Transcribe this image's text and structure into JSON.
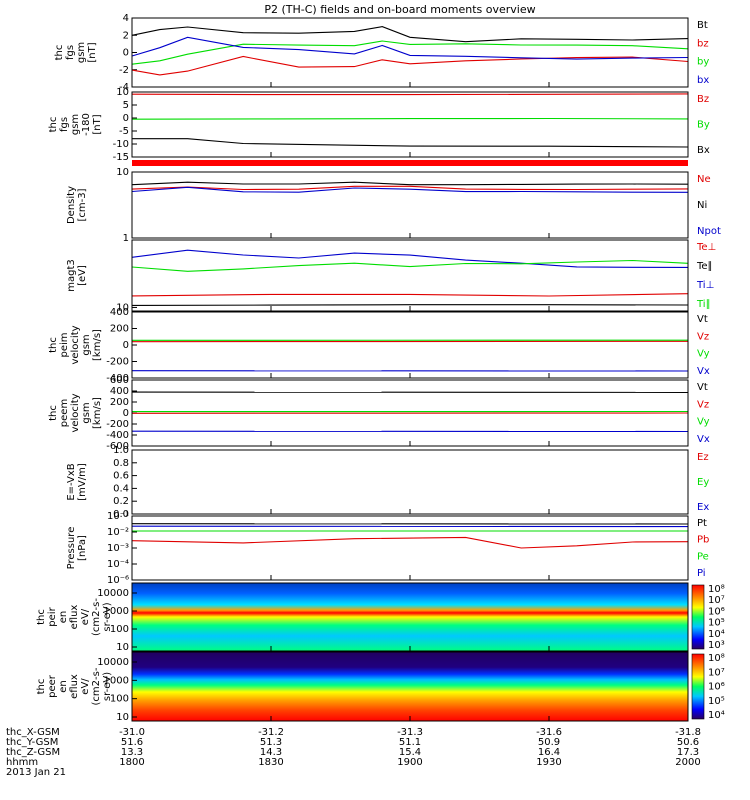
{
  "title": "P2 (TH-C) fields and on-board moments overview",
  "date": "2013 Jan 21",
  "footer": {
    "rows": [
      {
        "label": "thc_X-GSM",
        "values": [
          "-31.0",
          "-31.2",
          "-31.3",
          "-31.6",
          "-31.8"
        ]
      },
      {
        "label": "thc_Y-GSM",
        "values": [
          "51.6",
          "51.3",
          "51.1",
          "50.9",
          "50.6"
        ]
      },
      {
        "label": "thc_Z-GSM",
        "values": [
          "13.3",
          "14.3",
          "15.4",
          "16.4",
          "17.3"
        ]
      },
      {
        "label": "hhmm",
        "values": [
          "1800",
          "1830",
          "1900",
          "1930",
          "2000"
        ]
      }
    ]
  },
  "colors": {
    "black": "#000000",
    "red": "#e00000",
    "green": "#00dd00",
    "blue": "#0000cc"
  },
  "chart_data": [
    {
      "type": "line",
      "ylabel": [
        "thc",
        "fgs",
        "gsm",
        "[nT]"
      ],
      "ylim": [
        -4,
        4
      ],
      "yticks": [
        "-4",
        "-2",
        "0",
        "2",
        "4"
      ],
      "series": [
        {
          "name": "Bt",
          "color": "black",
          "x": [
            0,
            5,
            10,
            20,
            30,
            40,
            45,
            50,
            60,
            70,
            80,
            90,
            100
          ],
          "y": [
            2.0,
            2.7,
            3.0,
            2.3,
            2.2,
            2.4,
            3.0,
            1.8,
            1.3,
            1.6,
            1.5,
            1.4,
            1.6
          ]
        },
        {
          "name": "bz",
          "color": "red",
          "x": [
            0,
            5,
            10,
            20,
            30,
            40,
            45,
            50,
            60,
            70,
            80,
            90,
            100
          ],
          "y": [
            -2.0,
            -2.6,
            -2.2,
            -0.5,
            -1.7,
            -1.6,
            -0.8,
            -1.3,
            -1.0,
            -0.8,
            -0.6,
            -0.5,
            -1.0
          ]
        },
        {
          "name": "by",
          "color": "green",
          "x": [
            0,
            5,
            10,
            20,
            30,
            40,
            45,
            50,
            60,
            70,
            80,
            90,
            100
          ],
          "y": [
            -1.4,
            -1.0,
            -0.2,
            1.0,
            0.9,
            0.8,
            1.3,
            0.9,
            1.0,
            0.9,
            0.9,
            0.8,
            0.4
          ]
        },
        {
          "name": "bx",
          "color": "blue",
          "x": [
            0,
            5,
            10,
            20,
            30,
            40,
            45,
            50,
            60,
            70,
            80,
            90,
            100
          ],
          "y": [
            -0.4,
            0.6,
            1.8,
            0.6,
            0.3,
            -0.2,
            0.8,
            -0.3,
            -0.4,
            -0.6,
            -0.8,
            -0.7,
            -0.6
          ]
        }
      ]
    },
    {
      "type": "line",
      "ylabel": [
        "thc",
        "fgs",
        "gsm",
        "-180",
        "[nT]"
      ],
      "ylim": [
        -17,
        12
      ],
      "yticks": [
        "-15",
        "-10",
        "-5",
        "0",
        "5",
        "10"
      ],
      "series": [
        {
          "name": "Bz",
          "color": "red",
          "x": [
            0,
            25,
            50,
            75,
            100
          ],
          "y": [
            11,
            11,
            11,
            11,
            11
          ]
        },
        {
          "name": "By",
          "color": "green",
          "x": [
            0,
            25,
            50,
            75,
            100
          ],
          "y": [
            0,
            0,
            0,
            0,
            0
          ]
        },
        {
          "name": "Bx",
          "color": "black",
          "x": [
            0,
            10,
            20,
            50,
            75,
            100
          ],
          "y": [
            -9,
            -9,
            -11,
            -12,
            -12,
            -12.5
          ]
        }
      ]
    },
    {
      "type": "line",
      "ylabel": [
        "Density",
        "[cm-3]"
      ],
      "ylim": [
        1,
        10
      ],
      "log": true,
      "yticks": [
        "1",
        "10"
      ],
      "series": [
        {
          "name": "Ne",
          "color": "red",
          "x": [
            0,
            10,
            20,
            30,
            40,
            50,
            60,
            70,
            80,
            90,
            100
          ],
          "y": [
            5.5,
            6,
            5.5,
            5.5,
            6,
            6,
            5.5,
            5.5,
            5.5,
            5.5,
            5.5
          ]
        },
        {
          "name": "Ni",
          "color": "black",
          "x": [
            0,
            10,
            20,
            30,
            40,
            50,
            60,
            70,
            80,
            90,
            100
          ],
          "y": [
            6.5,
            7,
            6.5,
            6.5,
            7,
            6.5,
            6.5,
            6.5,
            6.5,
            6.5,
            6.5
          ]
        },
        {
          "name": "Npot",
          "color": "blue",
          "x": [
            0,
            10,
            20,
            30,
            40,
            50,
            60,
            70,
            80,
            90,
            100
          ],
          "y": [
            5,
            5.8,
            5,
            5,
            5.8,
            5.5,
            5,
            5,
            5,
            5,
            5
          ]
        }
      ]
    },
    {
      "type": "line",
      "ylabel": [
        "magt3",
        "[eV]"
      ],
      "ylim": [
        9,
        100
      ],
      "log": true,
      "yticks": [
        "10"
      ],
      "series": [
        {
          "name": "Te⊥",
          "color": "red",
          "x": [
            0,
            25,
            50,
            75,
            100
          ],
          "y": [
            15,
            16,
            16,
            15,
            16
          ]
        },
        {
          "name": "Te∥",
          "color": "black",
          "x": [
            0,
            25,
            50,
            75,
            100
          ],
          "y": [
            11,
            11,
            11,
            11,
            11
          ]
        },
        {
          "name": "Ti⊥",
          "color": "blue",
          "x": [
            0,
            10,
            20,
            30,
            40,
            50,
            60,
            70,
            80,
            90,
            100
          ],
          "y": [
            55,
            70,
            60,
            55,
            65,
            60,
            50,
            45,
            40,
            40,
            40
          ]
        },
        {
          "name": "Ti∥",
          "color": "green",
          "x": [
            0,
            10,
            20,
            30,
            40,
            50,
            60,
            70,
            80,
            90,
            100
          ],
          "y": [
            40,
            35,
            38,
            42,
            45,
            40,
            45,
            45,
            48,
            50,
            45
          ]
        }
      ]
    },
    {
      "type": "line",
      "ylabel": [
        "thc",
        "peim",
        "velocity",
        "gsm",
        "[km/s]"
      ],
      "ylim": [
        -500,
        400
      ],
      "yticks": [
        "-400",
        "-200",
        "0",
        "200",
        "400"
      ],
      "series": [
        {
          "name": "Vt",
          "color": "black",
          "x": [
            0,
            100
          ],
          "y": [
            410,
            410
          ]
        },
        {
          "name": "Vz",
          "color": "red",
          "x": [
            0,
            100
          ],
          "y": [
            0,
            0
          ]
        },
        {
          "name": "Vy",
          "color": "green",
          "x": [
            0,
            100
          ],
          "y": [
            10,
            10
          ]
        },
        {
          "name": "Vx",
          "color": "blue",
          "x": [
            0,
            100
          ],
          "y": [
            -400,
            -400
          ]
        }
      ]
    },
    {
      "type": "line",
      "ylabel": [
        "thc",
        "peem",
        "velocity",
        "gsm",
        "[km/s]"
      ],
      "ylim": [
        -600,
        600
      ],
      "yticks": [
        "-600",
        "-400",
        "-200",
        "0",
        "200",
        "400",
        "600"
      ],
      "series": [
        {
          "name": "Vt",
          "color": "black",
          "x": [
            0,
            100
          ],
          "y": [
            380,
            380
          ]
        },
        {
          "name": "Vz",
          "color": "red",
          "x": [
            0,
            100
          ],
          "y": [
            0,
            0
          ]
        },
        {
          "name": "Vy",
          "color": "green",
          "x": [
            0,
            100
          ],
          "y": [
            20,
            20
          ]
        },
        {
          "name": "Vx",
          "color": "blue",
          "x": [
            0,
            100
          ],
          "y": [
            -330,
            -330
          ]
        }
      ]
    },
    {
      "type": "line",
      "ylabel": [
        "E=-VxB",
        "[mV/m]"
      ],
      "ylim": [
        0,
        1
      ],
      "yticks": [
        "0.0",
        "0.2",
        "0.4",
        "0.6",
        "0.8",
        "1.0"
      ],
      "series": [
        {
          "name": "Ez",
          "color": "red",
          "x": [],
          "y": []
        },
        {
          "name": "Ey",
          "color": "green",
          "x": [],
          "y": []
        },
        {
          "name": "Ex",
          "color": "blue",
          "x": [],
          "y": []
        }
      ]
    },
    {
      "type": "line",
      "ylabel": [
        "Pressure",
        "[nPa]"
      ],
      "ylim": [
        -6,
        -1
      ],
      "log": true,
      "yticks": [
        "10⁻⁶",
        "10⁻⁴",
        "10⁻³",
        "10⁻²",
        "10⁻¹"
      ],
      "series": [
        {
          "name": "Pt",
          "color": "black",
          "x": [
            0,
            100
          ],
          "y": [
            -1.6,
            -1.6
          ]
        },
        {
          "name": "Pb",
          "color": "red",
          "x": [
            0,
            20,
            40,
            60,
            70,
            80,
            90,
            100
          ],
          "y": [
            -2.9,
            -3.1,
            -2.8,
            -2.7,
            -3.5,
            -3.3,
            -3.0,
            -3.0
          ]
        },
        {
          "name": "Pe",
          "color": "green",
          "x": [
            0,
            100
          ],
          "y": [
            -2.2,
            -2.2
          ]
        },
        {
          "name": "Pi",
          "color": "blue",
          "x": [
            0,
            100
          ],
          "y": [
            -1.8,
            -1.8
          ]
        }
      ]
    },
    {
      "type": "heatmap",
      "ylabel": [
        "thc",
        "peir",
        "en",
        "eflux",
        "eV/",
        "(cm2-s-",
        "sr-eV)"
      ],
      "yticks": [
        "10",
        "100",
        "1000",
        "10000"
      ],
      "cbar_ticks": [
        "10⁸",
        "10⁷",
        "10⁶",
        "10⁵",
        "10⁴",
        "10³"
      ]
    },
    {
      "type": "heatmap",
      "ylabel": [
        "thc",
        "peer",
        "en",
        "eflux",
        "eV/",
        "(cm2-s-",
        "sr-eV)"
      ],
      "yticks": [
        "10",
        "100",
        "1000",
        "10000"
      ],
      "cbar_ticks": [
        "10⁸",
        "10⁷",
        "10⁶",
        "10⁵",
        "10⁴"
      ]
    }
  ]
}
